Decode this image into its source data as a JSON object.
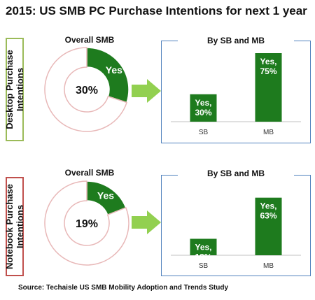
{
  "title": "2015: US SMB PC Purchase Intentions for next 1 year",
  "source": "Source: Techaisle US SMB Mobility Adoption and Trends Study",
  "colors": {
    "green": "#1e7b1e",
    "ring_outline": "#e8b8b8",
    "arrow": "#92d050",
    "panel_border": "#4f81bd",
    "desktop_label_border": "#9bbb59",
    "notebook_label_border": "#c0504d"
  },
  "sections": [
    {
      "label": "Desktop Purchase\nIntentions",
      "donut_title": "Overall SMB",
      "donut_center": "30%",
      "donut_slice_label": "Yes",
      "panel_title": "By SB and MB"
    },
    {
      "label": "Notebook Purchase\nIntentions",
      "donut_title": "Overall SMB",
      "donut_center": "19%",
      "donut_slice_label": "Yes",
      "panel_title": "By SB and MB"
    }
  ],
  "chart_data": [
    {
      "type": "pie",
      "title": "Overall SMB",
      "slices": [
        {
          "label": "Yes",
          "value": 30
        },
        {
          "label": "",
          "value": 70
        }
      ]
    },
    {
      "type": "bar",
      "title": "By SB and MB",
      "categories": [
        "SB",
        "MB"
      ],
      "values": [
        30,
        75
      ],
      "data_labels": [
        "Yes,\n30%",
        "Yes,\n75%"
      ],
      "ylim": [
        0,
        75
      ]
    },
    {
      "type": "pie",
      "title": "Overall SMB",
      "slices": [
        {
          "label": "Yes",
          "value": 19
        },
        {
          "label": "",
          "value": 81
        }
      ]
    },
    {
      "type": "bar",
      "title": "By SB and MB",
      "categories": [
        "SB",
        "MB"
      ],
      "values": [
        18,
        63
      ],
      "data_labels": [
        "Yes,\n18%",
        "Yes,\n63%"
      ],
      "ylim": [
        0,
        75
      ]
    }
  ]
}
